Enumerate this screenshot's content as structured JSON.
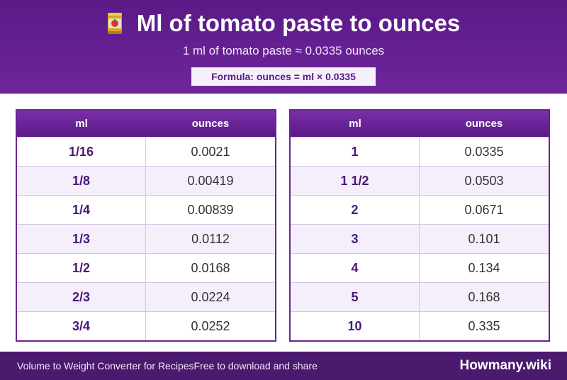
{
  "header": {
    "title": "Ml of tomato paste to ounces",
    "subtitle": "1 ml of tomato paste ≈ 0.0335 ounces",
    "formula": "Formula: ounces = ml × 0.0335",
    "icon": "tomato-can-icon"
  },
  "tables": {
    "left": {
      "headers": [
        "ml",
        "ounces"
      ],
      "rows": [
        {
          "ml": "1/16",
          "ounces": "0.0021"
        },
        {
          "ml": "1/8",
          "ounces": "0.00419"
        },
        {
          "ml": "1/4",
          "ounces": "0.00839"
        },
        {
          "ml": "1/3",
          "ounces": "0.0112"
        },
        {
          "ml": "1/2",
          "ounces": "0.0168"
        },
        {
          "ml": "2/3",
          "ounces": "0.0224"
        },
        {
          "ml": "3/4",
          "ounces": "0.0252"
        }
      ]
    },
    "right": {
      "headers": [
        "ml",
        "ounces"
      ],
      "rows": [
        {
          "ml": "1",
          "ounces": "0.0335"
        },
        {
          "ml": "1 1/2",
          "ounces": "0.0503"
        },
        {
          "ml": "2",
          "ounces": "0.0671"
        },
        {
          "ml": "3",
          "ounces": "0.101"
        },
        {
          "ml": "4",
          "ounces": "0.134"
        },
        {
          "ml": "5",
          "ounces": "0.168"
        },
        {
          "ml": "10",
          "ounces": "0.335"
        }
      ]
    }
  },
  "footer": {
    "left_text": "Volume to Weight Converter for RecipesFree to download and share",
    "brand": "Howmany.wiki"
  },
  "colors": {
    "header": "#6f259b",
    "footer": "#4a1a6f",
    "accent": "#5a1a86"
  }
}
